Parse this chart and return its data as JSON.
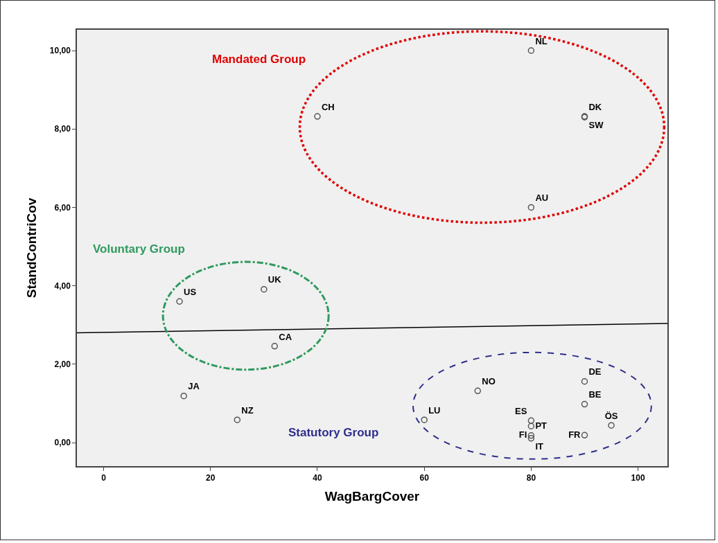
{
  "chart_data": {
    "type": "scatter",
    "xlabel": "WagBargCover",
    "ylabel": "StandContriCov",
    "xlim": [
      -5,
      105.5
    ],
    "ylim": [
      -0.6,
      10.53
    ],
    "xticks": [
      0,
      20,
      40,
      60,
      80,
      100
    ],
    "yticks": [
      {
        "value": 0,
        "label": "0,00"
      },
      {
        "value": 2,
        "label": "2,00"
      },
      {
        "value": 4,
        "label": "4,00"
      },
      {
        "value": 6,
        "label": "6,00"
      },
      {
        "value": 8,
        "label": "8,00"
      },
      {
        "value": 10,
        "label": "10,00"
      }
    ],
    "grid": false,
    "marker": "circle",
    "series": [
      {
        "color": "#555555",
        "x": [
          80,
          40,
          90,
          90,
          80,
          14.2,
          30,
          32,
          15,
          25,
          60,
          70,
          80,
          80,
          80,
          80,
          90,
          90,
          90,
          95
        ],
        "values": [
          10,
          8.32,
          8.32,
          8.3,
          6,
          3.6,
          3.91,
          2.46,
          1.19,
          0.58,
          0.58,
          1.32,
          0.56,
          0.42,
          0.18,
          0.11,
          1.56,
          0.98,
          0.19,
          0.44
        ],
        "value_labels": [
          "NL",
          "CH",
          "DK",
          "SW",
          "AU",
          "US",
          "UK",
          "CA",
          "JA",
          "NZ",
          "LU",
          "NO",
          "ES",
          "PT",
          "FI",
          "IT",
          "DE",
          "BE",
          "FR",
          "ÖS"
        ]
      },
      {
        "type": "line",
        "color": "#000000",
        "line_style": "solid",
        "marker": "none",
        "x": [
          -5,
          105.5
        ],
        "values": [
          2.8,
          3.04
        ]
      }
    ],
    "annotations": [
      "Mandated Group",
      "Voluntary Group",
      "Statutory Group"
    ]
  }
}
